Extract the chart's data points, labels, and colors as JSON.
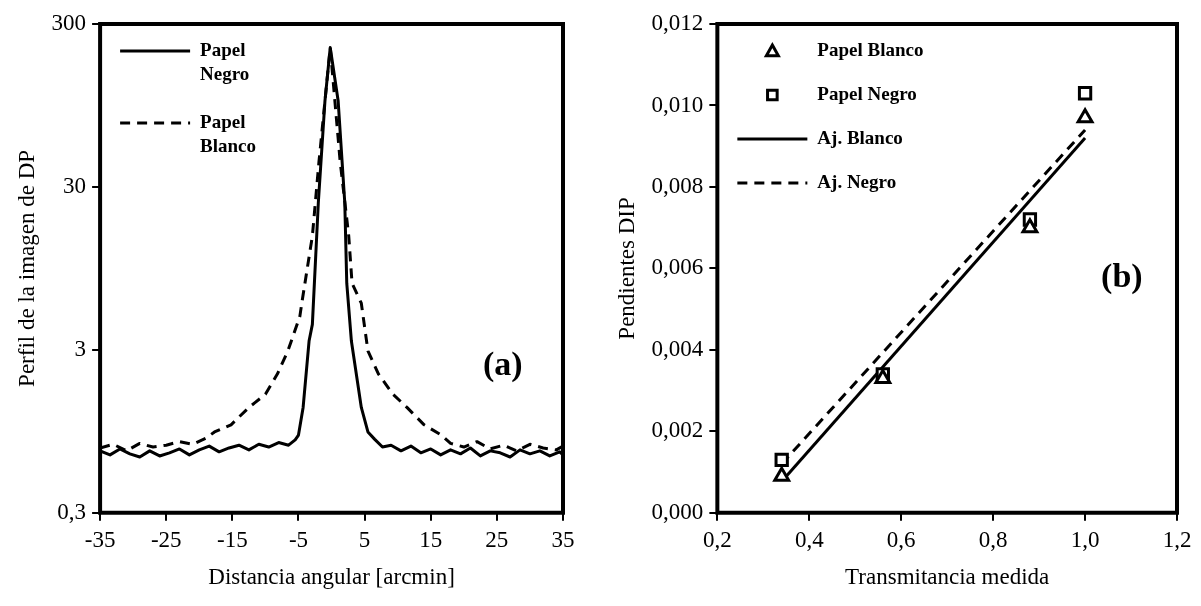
{
  "chart_data": [
    {
      "type": "line",
      "ylabel": "Perfil de la imagen de DP",
      "xlabel": "Distancia angular [arcmin]",
      "annotations": [
        "(a)"
      ],
      "log": "y",
      "grid": false,
      "legend": "top left",
      "marker": "none",
      "xlim": [
        -35,
        35
      ],
      "xticks": [
        -35,
        -25,
        -15,
        -5,
        5,
        15,
        25,
        35
      ],
      "ylim": [
        0.3,
        300
      ],
      "yticks": [
        {
          "value": 0.3,
          "label": "0,3"
        },
        3,
        30,
        300
      ],
      "series": [
        {
          "name": "Papel Negro",
          "color": "#000000",
          "line_style": "solid",
          "x": [
            -35,
            -33.5,
            -32,
            -30.5,
            -29,
            -27.5,
            -26,
            -24.5,
            -23,
            -21.5,
            -20,
            -18.5,
            -17,
            -15.5,
            -14,
            -12.5,
            -11,
            -9.5,
            -8,
            -6.5,
            -5.5,
            -5,
            -4.3,
            -3.4,
            -2.9,
            -2,
            -1,
            -0.2,
            1,
            2,
            2.3,
            3,
            4.5,
            5.5,
            6.5,
            7.7,
            9,
            10.5,
            12,
            13.5,
            15,
            16.5,
            18,
            19.5,
            21,
            22.5,
            24,
            25.5,
            27,
            28.5,
            30,
            31.5,
            33,
            34.5,
            35
          ],
          "values": [
            0.72,
            0.68,
            0.74,
            0.69,
            0.66,
            0.72,
            0.67,
            0.7,
            0.74,
            0.68,
            0.73,
            0.77,
            0.71,
            0.75,
            0.78,
            0.73,
            0.79,
            0.76,
            0.81,
            0.78,
            0.84,
            0.9,
            1.33,
            3.4,
            4.3,
            24,
            101,
            215,
            101,
            24,
            7.7,
            3.4,
            1.33,
            0.94,
            0.85,
            0.76,
            0.78,
            0.72,
            0.77,
            0.7,
            0.74,
            0.68,
            0.73,
            0.69,
            0.75,
            0.67,
            0.72,
            0.7,
            0.66,
            0.73,
            0.69,
            0.72,
            0.67,
            0.71,
            0.68
          ]
        },
        {
          "name": "Papel Blanco",
          "color": "#000000",
          "line_style": "dashed",
          "x": [
            -35,
            -33,
            -31,
            -29,
            -27,
            -25,
            -23,
            -21,
            -19,
            -17.7,
            -15.2,
            -12.5,
            -10,
            -8.2,
            -6.6,
            -4.8,
            -4.5,
            -2.9,
            -1.9,
            -0.2,
            1.3,
            2.6,
            3.1,
            4.5,
            5.5,
            7.1,
            9.3,
            11.4,
            14,
            16.6,
            18,
            20,
            22,
            24,
            26,
            28,
            30,
            32,
            34,
            35
          ],
          "values": [
            0.75,
            0.79,
            0.72,
            0.8,
            0.76,
            0.78,
            0.82,
            0.79,
            0.86,
            0.94,
            1.04,
            1.33,
            1.6,
            2.13,
            2.96,
            4.8,
            5.8,
            15,
            43,
            215,
            43,
            15,
            7.7,
            5.8,
            2.96,
            2.13,
            1.6,
            1.33,
            1.04,
            0.9,
            0.8,
            0.76,
            0.82,
            0.74,
            0.78,
            0.72,
            0.79,
            0.75,
            0.73,
            0.77
          ]
        }
      ]
    },
    {
      "type": "scatter",
      "ylabel": "Pendientes DIP",
      "xlabel": "Transmitancia medida",
      "annotations": [
        "(b)"
      ],
      "grid": false,
      "legend": "top left",
      "xlim": [
        0.2,
        1.2
      ],
      "xticks": [
        {
          "value": 0.2,
          "label": "0,2"
        },
        {
          "value": 0.4,
          "label": "0,4"
        },
        {
          "value": 0.6,
          "label": "0,6"
        },
        {
          "value": 0.8,
          "label": "0,8"
        },
        {
          "value": 1.0,
          "label": "1,0"
        },
        {
          "value": 1.2,
          "label": "1,2"
        }
      ],
      "ylim": [
        0,
        0.012
      ],
      "yticks": [
        {
          "value": 0,
          "label": "0,000"
        },
        {
          "value": 0.002,
          "label": "0,002"
        },
        {
          "value": 0.004,
          "label": "0,004"
        },
        {
          "value": 0.006,
          "label": "0,006"
        },
        {
          "value": 0.008,
          "label": "0,008"
        },
        {
          "value": 0.01,
          "label": "0,010"
        },
        {
          "value": 0.012,
          "label": "0,012"
        }
      ],
      "series": [
        {
          "name": "Papel Blanco",
          "marker": "triangle",
          "color": "#000000",
          "x": [
            0.34,
            0.56,
            0.88,
            1.0
          ],
          "values": [
            0.0009,
            0.0033,
            0.007,
            0.0097
          ]
        },
        {
          "name": "Papel Negro",
          "marker": "square",
          "color": "#000000",
          "x": [
            0.34,
            0.56,
            0.88,
            1.0
          ],
          "values": [
            0.0013,
            0.0034,
            0.0072,
            0.0103
          ]
        },
        {
          "name": "Aj. Blanco",
          "type": "line",
          "line_style": "solid",
          "marker": "none",
          "color": "#000000",
          "x": [
            0.35,
            1.0
          ],
          "values": [
            0.0009,
            0.0092
          ]
        },
        {
          "name": "Aj. Negro",
          "type": "line",
          "line_style": "dashed",
          "marker": "none",
          "color": "#000000",
          "x": [
            0.34,
            1.0
          ],
          "values": [
            0.0012,
            0.0094
          ]
        }
      ]
    }
  ]
}
